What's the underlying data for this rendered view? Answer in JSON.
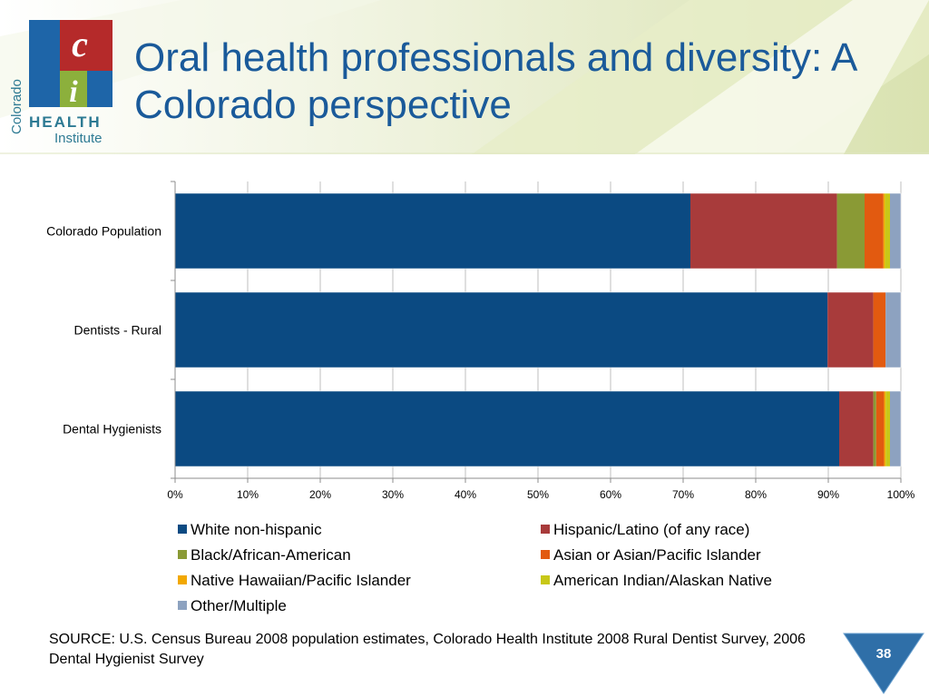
{
  "slide": {
    "title": "Oral health professionals and diversity:  A Colorado perspective",
    "source": "SOURCE:  U.S. Census Bureau 2008 population estimates, Colorado Health Institute 2008 Rural Dentist Survey, 2006 Dental Hygienist Survey",
    "page_number": "38"
  },
  "logo": {
    "letter_top": "c",
    "letter_bottom": "i",
    "vertical_text": "Colorado",
    "word1": "HEALTH",
    "word2": "Institute",
    "colors": {
      "blue": "#1e65a8",
      "green": "#8cb03c",
      "red": "#b52a2a",
      "teal": "#2d7a93"
    }
  },
  "chart_data": {
    "type": "bar",
    "orientation": "horizontal",
    "stacked": "percent",
    "categories": [
      "Colorado Population",
      "Dentists - Rural",
      "Dental Hygienists"
    ],
    "x_ticks": [
      "0%",
      "10%",
      "20%",
      "30%",
      "40%",
      "50%",
      "60%",
      "70%",
      "80%",
      "90%",
      "100%"
    ],
    "xlim": [
      0,
      100
    ],
    "grid": true,
    "legend_position": "bottom",
    "series": [
      {
        "name": "White non-hispanic",
        "color": "#0b4a82",
        "values": [
          71.0,
          89.9,
          91.5
        ]
      },
      {
        "name": "Hispanic/Latino (of any race)",
        "color": "#a83b3b",
        "values": [
          20.2,
          6.3,
          4.7
        ]
      },
      {
        "name": "Black/African-American",
        "color": "#8a9a35",
        "values": [
          3.8,
          0.0,
          0.4
        ]
      },
      {
        "name": "Asian or Asian/Pacific Islander",
        "color": "#e25a10",
        "values": [
          2.6,
          1.7,
          1.1
        ]
      },
      {
        "name": "Native Hawaiian/Pacific Islander",
        "color": "#f2a800",
        "values": [
          0.2,
          0.0,
          0.2
        ]
      },
      {
        "name": "American Indian/Alaskan Native",
        "color": "#c8c818",
        "values": [
          0.7,
          0.0,
          0.6
        ]
      },
      {
        "name": "Other/Multiple",
        "color": "#8da2c0",
        "values": [
          1.5,
          2.1,
          1.5
        ]
      }
    ]
  }
}
